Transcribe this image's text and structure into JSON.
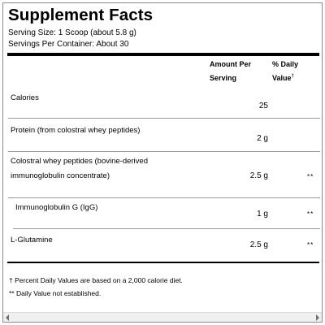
{
  "panel": {
    "title": "Supplement Facts",
    "serving_size": "Serving Size: 1 Scoop (about 5.8 g)",
    "servings_per_container": "Servings Per Container: About 30"
  },
  "table": {
    "header": {
      "amount_line1": "Amount Per",
      "amount_line2": "Serving",
      "dv_line1": "% Daily",
      "dv_line2": "Value",
      "dv_mark": "†"
    },
    "rows": [
      {
        "label": "Calories",
        "label2": "",
        "amount": "25",
        "dv": ""
      },
      {
        "label": "Protein (from colostral whey peptides)",
        "label2": "",
        "amount": "2 g",
        "dv": ""
      },
      {
        "label": "Colostral whey peptides (bovine-derived",
        "label2": "immunoglobulin concentrate)",
        "amount": "2.5 g",
        "dv": "**"
      },
      {
        "label": "Immunoglobulin G (IgG)",
        "label2": "",
        "amount": "1 g",
        "dv": "**"
      },
      {
        "label": "L-Glutamine",
        "label2": "",
        "amount": "2.5 g",
        "dv": "**"
      }
    ]
  },
  "footnotes": {
    "dagger": "† Percent Daily Values are based on a 2,000 calorie diet.",
    "stars": "** Daily Value not established."
  }
}
